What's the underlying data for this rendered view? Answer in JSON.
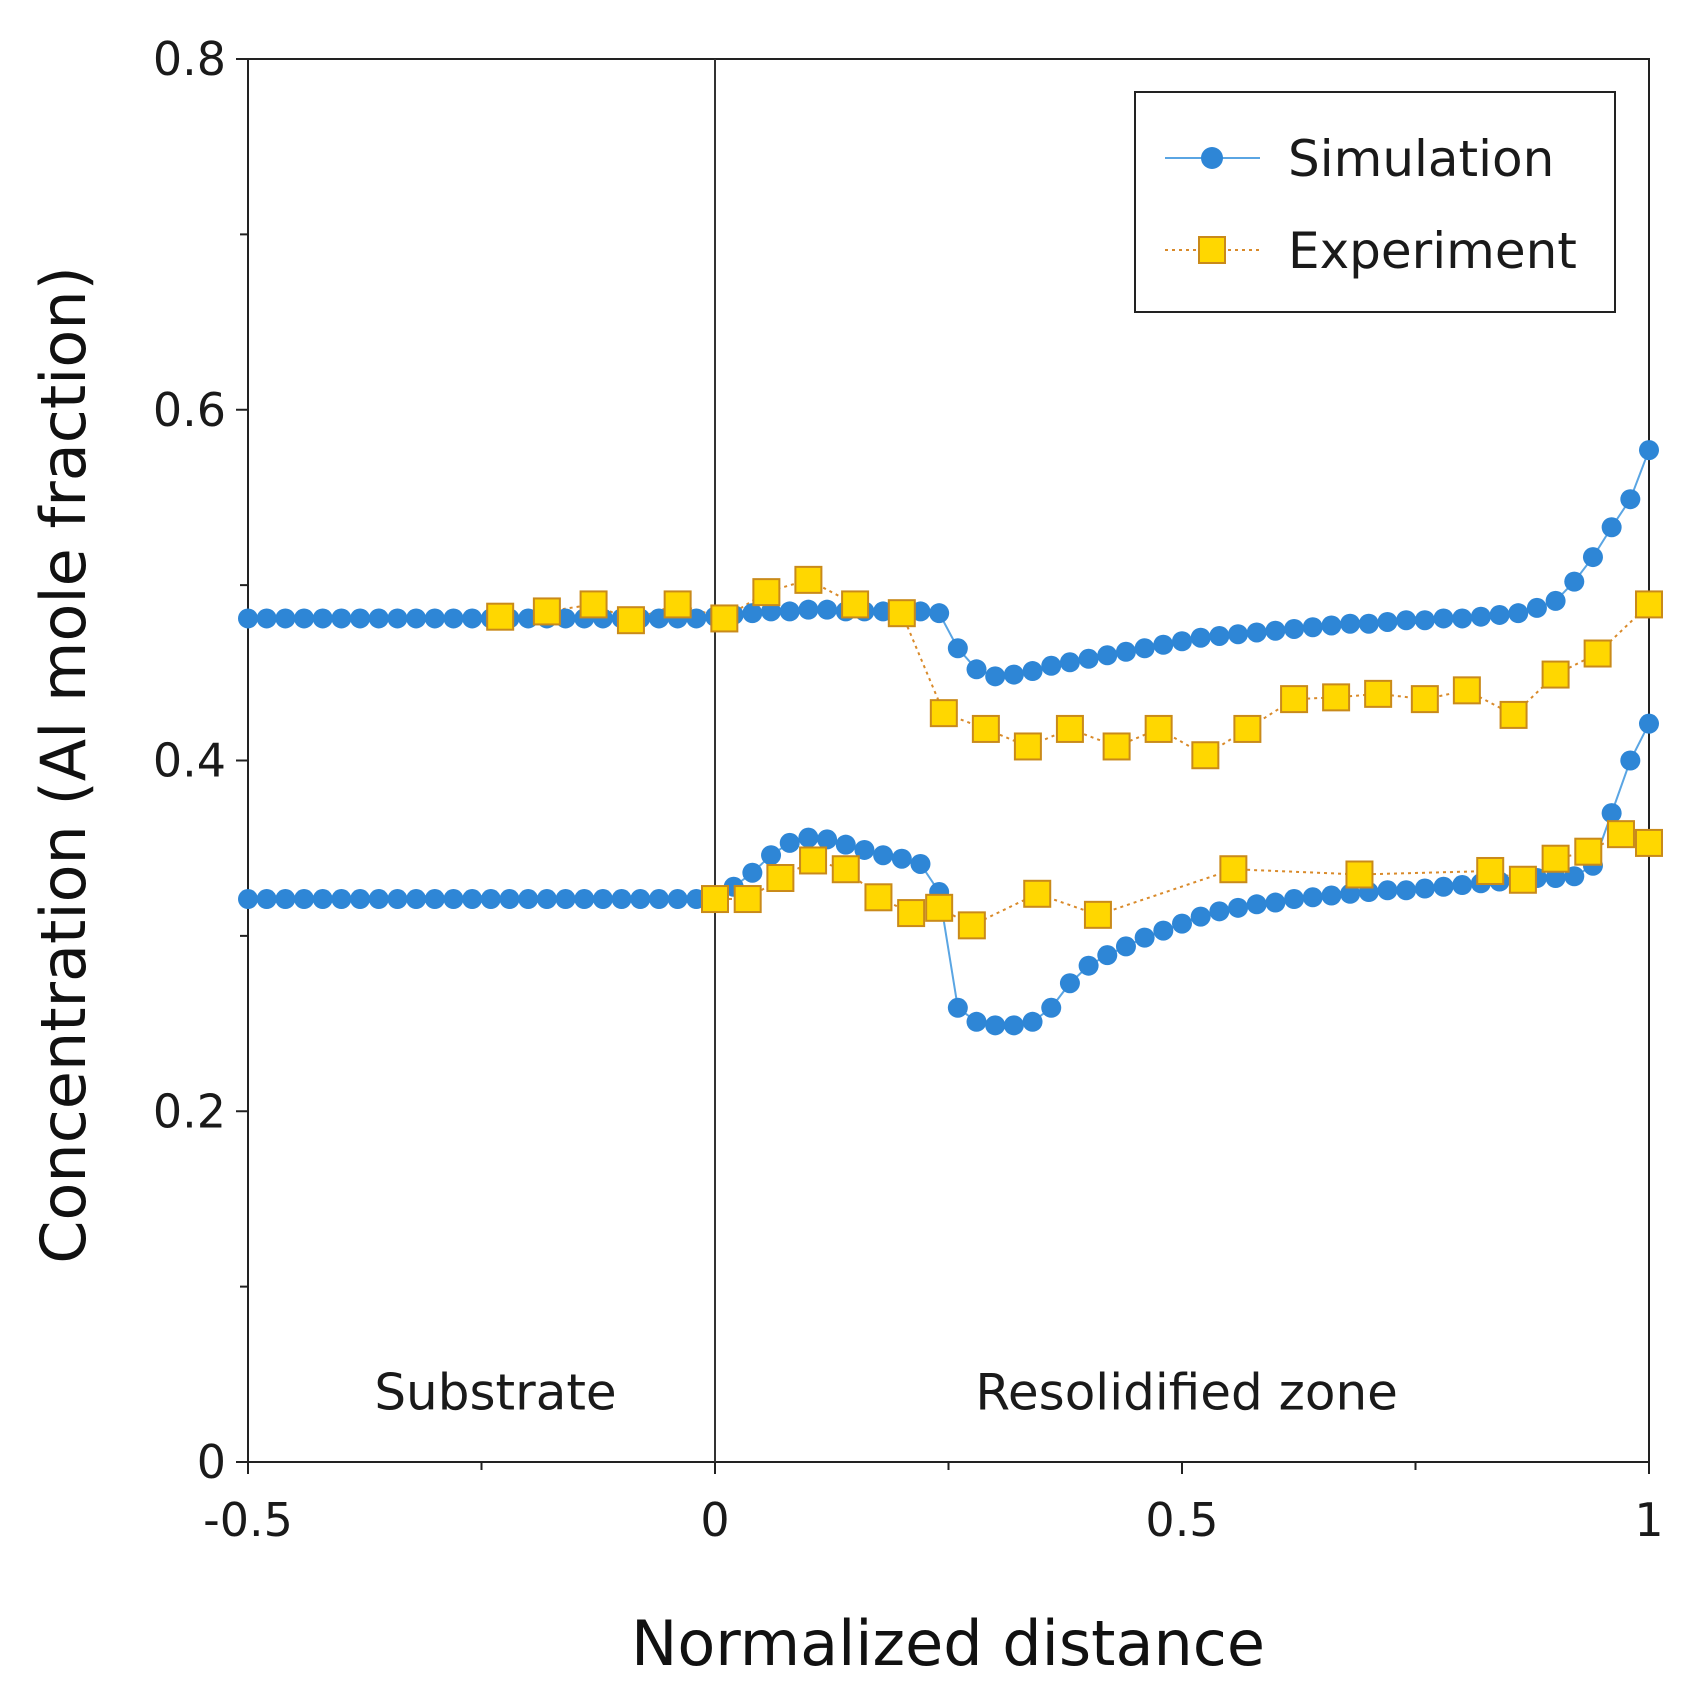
{
  "chart_data": {
    "type": "scatter",
    "title": "",
    "xlabel": "Normalized distance",
    "ylabel": "Concentration (Al mole fraction)",
    "xlim": [
      -0.5,
      1.0
    ],
    "ylim": [
      0,
      0.8
    ],
    "x_ticks": [
      -0.5,
      0,
      0.5,
      1
    ],
    "x_tick_labels": [
      "-0.5",
      "0",
      "0.5",
      "1"
    ],
    "y_ticks": [
      0,
      0.2,
      0.4,
      0.6,
      0.8
    ],
    "y_tick_labels": [
      "0",
      "0.2",
      "0.4",
      "0.6",
      "0.8"
    ],
    "grid": false,
    "legend_position": "top-right",
    "vertical_line_x": 0,
    "annotations": [
      {
        "text": "Substrate",
        "x": -0.235,
        "y": 0.03
      },
      {
        "text": "Resolidified zone",
        "x": 0.505,
        "y": 0.03
      }
    ],
    "series": [
      {
        "name": "Simulation",
        "marker": "circle",
        "line_style": "solid",
        "color": "#2e86d6",
        "show_in_legend": true,
        "points": [
          [
            -0.5,
            0.481
          ],
          [
            -0.48,
            0.481
          ],
          [
            -0.46,
            0.481
          ],
          [
            -0.44,
            0.481
          ],
          [
            -0.42,
            0.481
          ],
          [
            -0.4,
            0.481
          ],
          [
            -0.38,
            0.481
          ],
          [
            -0.36,
            0.481
          ],
          [
            -0.34,
            0.481
          ],
          [
            -0.32,
            0.481
          ],
          [
            -0.3,
            0.481
          ],
          [
            -0.28,
            0.481
          ],
          [
            -0.26,
            0.481
          ],
          [
            -0.24,
            0.481
          ],
          [
            -0.22,
            0.481
          ],
          [
            -0.2,
            0.481
          ],
          [
            -0.18,
            0.481
          ],
          [
            -0.16,
            0.481
          ],
          [
            -0.14,
            0.481
          ],
          [
            -0.12,
            0.481
          ],
          [
            -0.1,
            0.481
          ],
          [
            -0.08,
            0.481
          ],
          [
            -0.06,
            0.481
          ],
          [
            -0.04,
            0.481
          ],
          [
            -0.02,
            0.481
          ],
          [
            0.0,
            0.482
          ],
          [
            0.02,
            0.483
          ],
          [
            0.04,
            0.484
          ],
          [
            0.06,
            0.485
          ],
          [
            0.08,
            0.485
          ],
          [
            0.1,
            0.486
          ],
          [
            0.12,
            0.486
          ],
          [
            0.14,
            0.485
          ],
          [
            0.16,
            0.485
          ],
          [
            0.18,
            0.485
          ],
          [
            0.2,
            0.485
          ],
          [
            0.22,
            0.485
          ],
          [
            0.24,
            0.484
          ],
          [
            0.26,
            0.464
          ],
          [
            0.28,
            0.452
          ],
          [
            0.3,
            0.448
          ],
          [
            0.32,
            0.449
          ],
          [
            0.34,
            0.451
          ],
          [
            0.36,
            0.454
          ],
          [
            0.38,
            0.456
          ],
          [
            0.4,
            0.458
          ],
          [
            0.42,
            0.46
          ],
          [
            0.44,
            0.462
          ],
          [
            0.46,
            0.464
          ],
          [
            0.48,
            0.466
          ],
          [
            0.5,
            0.468
          ],
          [
            0.52,
            0.47
          ],
          [
            0.54,
            0.471
          ],
          [
            0.56,
            0.472
          ],
          [
            0.58,
            0.473
          ],
          [
            0.6,
            0.474
          ],
          [
            0.62,
            0.475
          ],
          [
            0.64,
            0.476
          ],
          [
            0.66,
            0.477
          ],
          [
            0.68,
            0.478
          ],
          [
            0.7,
            0.478
          ],
          [
            0.72,
            0.479
          ],
          [
            0.74,
            0.48
          ],
          [
            0.76,
            0.48
          ],
          [
            0.78,
            0.481
          ],
          [
            0.8,
            0.481
          ],
          [
            0.82,
            0.482
          ],
          [
            0.84,
            0.483
          ],
          [
            0.86,
            0.484
          ],
          [
            0.88,
            0.487
          ],
          [
            0.9,
            0.491
          ],
          [
            0.92,
            0.502
          ],
          [
            0.94,
            0.516
          ],
          [
            0.96,
            0.533
          ],
          [
            0.98,
            0.549
          ],
          [
            1.0,
            0.577
          ]
        ]
      },
      {
        "name": "Experiment",
        "marker": "square",
        "line_style": "dotted",
        "color": "#ffd700",
        "edge_color": "#c98a1a",
        "show_in_legend": true,
        "points": [
          [
            -0.23,
            0.482
          ],
          [
            -0.18,
            0.485
          ],
          [
            -0.13,
            0.489
          ],
          [
            -0.09,
            0.48
          ],
          [
            -0.04,
            0.489
          ],
          [
            0.01,
            0.481
          ],
          [
            0.055,
            0.496
          ],
          [
            0.1,
            0.503
          ],
          [
            0.15,
            0.489
          ],
          [
            0.2,
            0.484
          ],
          [
            0.245,
            0.427
          ],
          [
            0.29,
            0.418
          ],
          [
            0.335,
            0.408
          ],
          [
            0.38,
            0.418
          ],
          [
            0.43,
            0.408
          ],
          [
            0.475,
            0.418
          ],
          [
            0.525,
            0.403
          ],
          [
            0.57,
            0.418
          ],
          [
            0.62,
            0.435
          ],
          [
            0.665,
            0.436
          ],
          [
            0.71,
            0.438
          ],
          [
            0.76,
            0.435
          ],
          [
            0.805,
            0.44
          ],
          [
            0.855,
            0.426
          ],
          [
            0.9,
            0.449
          ],
          [
            0.945,
            0.461
          ],
          [
            1.0,
            0.489
          ]
        ]
      },
      {
        "name": "Simulation",
        "marker": "circle",
        "line_style": "solid",
        "color": "#2e86d6",
        "show_in_legend": false,
        "points": [
          [
            -0.5,
            0.321
          ],
          [
            -0.48,
            0.321
          ],
          [
            -0.46,
            0.321
          ],
          [
            -0.44,
            0.321
          ],
          [
            -0.42,
            0.321
          ],
          [
            -0.4,
            0.321
          ],
          [
            -0.38,
            0.321
          ],
          [
            -0.36,
            0.321
          ],
          [
            -0.34,
            0.321
          ],
          [
            -0.32,
            0.321
          ],
          [
            -0.3,
            0.321
          ],
          [
            -0.28,
            0.321
          ],
          [
            -0.26,
            0.321
          ],
          [
            -0.24,
            0.321
          ],
          [
            -0.22,
            0.321
          ],
          [
            -0.2,
            0.321
          ],
          [
            -0.18,
            0.321
          ],
          [
            -0.16,
            0.321
          ],
          [
            -0.14,
            0.321
          ],
          [
            -0.12,
            0.321
          ],
          [
            -0.1,
            0.321
          ],
          [
            -0.08,
            0.321
          ],
          [
            -0.06,
            0.321
          ],
          [
            -0.04,
            0.321
          ],
          [
            -0.02,
            0.321
          ],
          [
            0.0,
            0.323
          ],
          [
            0.02,
            0.328
          ],
          [
            0.04,
            0.336
          ],
          [
            0.06,
            0.346
          ],
          [
            0.08,
            0.353
          ],
          [
            0.1,
            0.356
          ],
          [
            0.12,
            0.355
          ],
          [
            0.14,
            0.352
          ],
          [
            0.16,
            0.349
          ],
          [
            0.18,
            0.346
          ],
          [
            0.2,
            0.344
          ],
          [
            0.22,
            0.341
          ],
          [
            0.24,
            0.325
          ],
          [
            0.26,
            0.259
          ],
          [
            0.28,
            0.251
          ],
          [
            0.3,
            0.249
          ],
          [
            0.32,
            0.249
          ],
          [
            0.34,
            0.251
          ],
          [
            0.36,
            0.259
          ],
          [
            0.38,
            0.273
          ],
          [
            0.4,
            0.283
          ],
          [
            0.42,
            0.289
          ],
          [
            0.44,
            0.294
          ],
          [
            0.46,
            0.299
          ],
          [
            0.48,
            0.303
          ],
          [
            0.5,
            0.307
          ],
          [
            0.52,
            0.311
          ],
          [
            0.54,
            0.314
          ],
          [
            0.56,
            0.316
          ],
          [
            0.58,
            0.318
          ],
          [
            0.6,
            0.319
          ],
          [
            0.62,
            0.321
          ],
          [
            0.64,
            0.322
          ],
          [
            0.66,
            0.323
          ],
          [
            0.68,
            0.324
          ],
          [
            0.7,
            0.325
          ],
          [
            0.72,
            0.326
          ],
          [
            0.74,
            0.326
          ],
          [
            0.76,
            0.327
          ],
          [
            0.78,
            0.328
          ],
          [
            0.8,
            0.329
          ],
          [
            0.82,
            0.33
          ],
          [
            0.84,
            0.331
          ],
          [
            0.86,
            0.332
          ],
          [
            0.88,
            0.333
          ],
          [
            0.9,
            0.333
          ],
          [
            0.92,
            0.334
          ],
          [
            0.94,
            0.34
          ],
          [
            0.96,
            0.37
          ],
          [
            0.98,
            0.4
          ],
          [
            1.0,
            0.421
          ]
        ]
      },
      {
        "name": "Experiment",
        "marker": "square",
        "line_style": "dotted",
        "color": "#ffd700",
        "edge_color": "#c98a1a",
        "show_in_legend": false,
        "points": [
          [
            0.0,
            0.321
          ],
          [
            0.035,
            0.321
          ],
          [
            0.07,
            0.333
          ],
          [
            0.105,
            0.343
          ],
          [
            0.14,
            0.338
          ],
          [
            0.175,
            0.322
          ],
          [
            0.21,
            0.313
          ],
          [
            0.24,
            0.316
          ],
          [
            0.275,
            0.306
          ],
          [
            0.345,
            0.324
          ],
          [
            0.41,
            0.312
          ],
          [
            0.555,
            0.338
          ],
          [
            0.69,
            0.335
          ],
          [
            0.83,
            0.337
          ],
          [
            0.865,
            0.332
          ],
          [
            0.9,
            0.344
          ],
          [
            0.935,
            0.348
          ],
          [
            0.97,
            0.358
          ],
          [
            1.0,
            0.353
          ]
        ]
      }
    ]
  }
}
